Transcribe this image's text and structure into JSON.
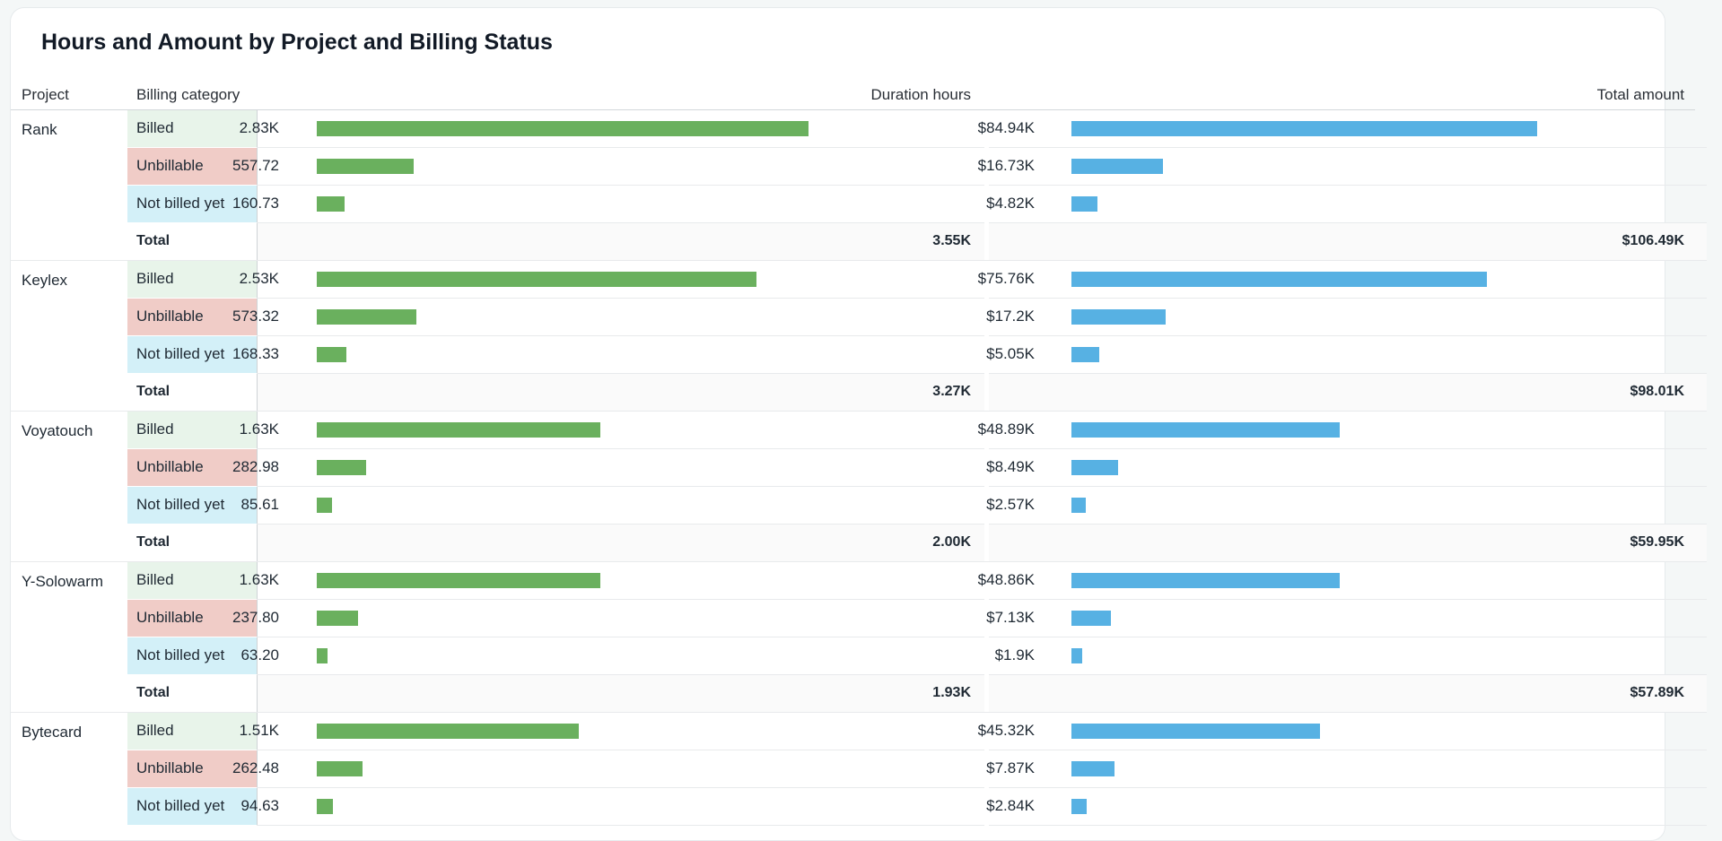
{
  "chart_data": {
    "type": "table",
    "title": "Hours and Amount by Project and Billing Status",
    "columns": [
      "Project",
      "Billing category",
      "Duration hours",
      "Total amount"
    ],
    "colors": {
      "duration_bar": "#6ab05e",
      "amount_bar": "#57b1e3",
      "billed": "#e8f4ea",
      "unbillable": "#f0ccc7",
      "not_billed_yet": "#d3f0f8"
    },
    "scale": {
      "duration_max": 2830,
      "amount_max": 84940
    },
    "projects": [
      {
        "name": "Rank",
        "rows": [
          {
            "category": "Billed",
            "kind": "billed",
            "duration": 2830,
            "duration_label": "2.83K",
            "amount": 84940,
            "amount_label": "$84.94K"
          },
          {
            "category": "Unbillable",
            "kind": "unbillable",
            "duration": 557.72,
            "duration_label": "557.72",
            "amount": 16730,
            "amount_label": "$16.73K"
          },
          {
            "category": "Not billed yet",
            "kind": "notbilled",
            "duration": 160.73,
            "duration_label": "160.73",
            "amount": 4820,
            "amount_label": "$4.82K"
          }
        ],
        "total_label": "Total",
        "total_duration": "3.55K",
        "total_amount": "$106.49K"
      },
      {
        "name": "Keylex",
        "rows": [
          {
            "category": "Billed",
            "kind": "billed",
            "duration": 2530,
            "duration_label": "2.53K",
            "amount": 75760,
            "amount_label": "$75.76K"
          },
          {
            "category": "Unbillable",
            "kind": "unbillable",
            "duration": 573.32,
            "duration_label": "573.32",
            "amount": 17200,
            "amount_label": "$17.2K"
          },
          {
            "category": "Not billed yet",
            "kind": "notbilled",
            "duration": 168.33,
            "duration_label": "168.33",
            "amount": 5050,
            "amount_label": "$5.05K"
          }
        ],
        "total_label": "Total",
        "total_duration": "3.27K",
        "total_amount": "$98.01K"
      },
      {
        "name": "Voyatouch",
        "rows": [
          {
            "category": "Billed",
            "kind": "billed",
            "duration": 1630,
            "duration_label": "1.63K",
            "amount": 48890,
            "amount_label": "$48.89K"
          },
          {
            "category": "Unbillable",
            "kind": "unbillable",
            "duration": 282.98,
            "duration_label": "282.98",
            "amount": 8490,
            "amount_label": "$8.49K"
          },
          {
            "category": "Not billed yet",
            "kind": "notbilled",
            "duration": 85.61,
            "duration_label": "85.61",
            "amount": 2570,
            "amount_label": "$2.57K"
          }
        ],
        "total_label": "Total",
        "total_duration": "2.00K",
        "total_amount": "$59.95K"
      },
      {
        "name": "Y-Solowarm",
        "rows": [
          {
            "category": "Billed",
            "kind": "billed",
            "duration": 1630,
            "duration_label": "1.63K",
            "amount": 48860,
            "amount_label": "$48.86K"
          },
          {
            "category": "Unbillable",
            "kind": "unbillable",
            "duration": 237.8,
            "duration_label": "237.80",
            "amount": 7130,
            "amount_label": "$7.13K"
          },
          {
            "category": "Not billed yet",
            "kind": "notbilled",
            "duration": 63.2,
            "duration_label": "63.20",
            "amount": 1900,
            "amount_label": "$1.9K"
          }
        ],
        "total_label": "Total",
        "total_duration": "1.93K",
        "total_amount": "$57.89K"
      },
      {
        "name": "Bytecard",
        "rows": [
          {
            "category": "Billed",
            "kind": "billed",
            "duration": 1510,
            "duration_label": "1.51K",
            "amount": 45320,
            "amount_label": "$45.32K"
          },
          {
            "category": "Unbillable",
            "kind": "unbillable",
            "duration": 262.48,
            "duration_label": "262.48",
            "amount": 7870,
            "amount_label": "$7.87K"
          },
          {
            "category": "Not billed yet",
            "kind": "notbilled",
            "duration": 94.63,
            "duration_label": "94.63",
            "amount": 2840,
            "amount_label": "$2.84K"
          }
        ]
      }
    ]
  }
}
